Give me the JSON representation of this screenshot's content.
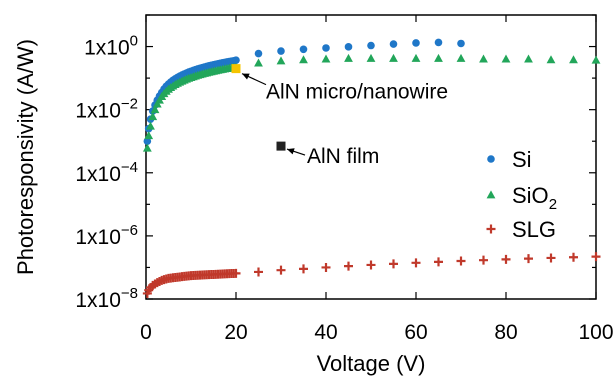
{
  "chart_data": {
    "type": "scatter",
    "xlabel": "Voltage (V)",
    "ylabel": "Photoresponsivity (A/W)",
    "xlim": [
      0,
      100
    ],
    "ylim": [
      1e-08,
      10
    ],
    "y_scale": "log",
    "x_ticks": [
      "0",
      "20",
      "40",
      "60",
      "80",
      "100"
    ],
    "y_ticks": [
      {
        "mantissa": "1x10",
        "exp": "0"
      },
      {
        "mantissa": "1x10",
        "exp": "−2"
      },
      {
        "mantissa": "1x10",
        "exp": "−4"
      },
      {
        "mantissa": "1x10",
        "exp": "−6"
      },
      {
        "mantissa": "1x10",
        "exp": "−8"
      }
    ],
    "legend_position": "right",
    "series": [
      {
        "name": "Si",
        "name_sub": "",
        "marker": "circle",
        "color": "#1f77c8",
        "x": [
          0.3,
          0.6,
          1,
          1.5,
          2,
          2.5,
          3,
          3.5,
          4,
          4.5,
          5,
          5.5,
          6,
          6.5,
          7,
          7.5,
          8,
          8.5,
          9,
          9.5,
          10,
          10.5,
          11,
          11.5,
          12,
          12.5,
          13,
          13.5,
          14,
          14.5,
          15,
          15.5,
          16,
          16.5,
          17,
          17.5,
          18,
          18.5,
          19,
          19.5,
          20,
          25,
          30,
          35,
          40,
          45,
          50,
          55,
          60,
          65,
          70
        ],
        "y": [
          0.001,
          0.0025,
          0.005,
          0.009,
          0.014,
          0.02,
          0.027,
          0.035,
          0.045,
          0.055,
          0.065,
          0.075,
          0.085,
          0.095,
          0.105,
          0.115,
          0.125,
          0.135,
          0.145,
          0.155,
          0.165,
          0.175,
          0.185,
          0.195,
          0.205,
          0.215,
          0.225,
          0.235,
          0.245,
          0.255,
          0.265,
          0.275,
          0.285,
          0.295,
          0.305,
          0.315,
          0.325,
          0.335,
          0.345,
          0.355,
          0.37,
          0.6,
          0.72,
          0.82,
          0.9,
          0.98,
          1.08,
          1.2,
          1.3,
          1.35,
          1.25
        ]
      },
      {
        "name": "SiO",
        "name_sub": "2",
        "marker": "triangle",
        "color": "#22a65a",
        "x": [
          0.3,
          0.6,
          1,
          1.5,
          2,
          2.5,
          3,
          3.5,
          4,
          4.5,
          5,
          5.5,
          6,
          6.5,
          7,
          7.5,
          8,
          8.5,
          9,
          9.5,
          10,
          10.5,
          11,
          11.5,
          12,
          12.5,
          13,
          13.5,
          14,
          14.5,
          15,
          15.5,
          16,
          16.5,
          17,
          17.5,
          18,
          18.5,
          19,
          19.5,
          20,
          25,
          30,
          35,
          40,
          45,
          50,
          55,
          60,
          65,
          70,
          75,
          80,
          85,
          90,
          95,
          100
        ],
        "y": [
          0.0006,
          0.0015,
          0.003,
          0.006,
          0.01,
          0.015,
          0.02,
          0.026,
          0.032,
          0.038,
          0.044,
          0.05,
          0.056,
          0.062,
          0.068,
          0.074,
          0.08,
          0.086,
          0.092,
          0.098,
          0.104,
          0.11,
          0.116,
          0.122,
          0.128,
          0.134,
          0.14,
          0.146,
          0.152,
          0.158,
          0.164,
          0.17,
          0.176,
          0.182,
          0.188,
          0.194,
          0.2,
          0.206,
          0.212,
          0.218,
          0.22,
          0.3,
          0.35,
          0.38,
          0.4,
          0.42,
          0.42,
          0.42,
          0.42,
          0.42,
          0.42,
          0.4,
          0.4,
          0.4,
          0.38,
          0.38,
          0.37
        ]
      },
      {
        "name": "SLG",
        "name_sub": "",
        "marker": "plus",
        "color": "#c0392b",
        "x": [
          0.3,
          0.6,
          1,
          1.5,
          2,
          2.5,
          3,
          3.5,
          4,
          4.5,
          5,
          5.5,
          6,
          6.5,
          7,
          7.5,
          8,
          8.5,
          9,
          9.5,
          10,
          10.5,
          11,
          11.5,
          12,
          12.5,
          13,
          13.5,
          14,
          14.5,
          15,
          15.5,
          16,
          16.5,
          17,
          17.5,
          18,
          18.5,
          19,
          19.5,
          20,
          25,
          30,
          35,
          40,
          45,
          50,
          55,
          60,
          65,
          70,
          75,
          80,
          85,
          90,
          95,
          100
        ],
        "y": [
          1.5e-08,
          1.9e-08,
          2.3e-08,
          2.7e-08,
          3e-08,
          3.3e-08,
          3.6e-08,
          3.9e-08,
          4.1e-08,
          4.3e-08,
          4.5e-08,
          4.6e-08,
          4.7e-08,
          4.8e-08,
          4.9e-08,
          5e-08,
          5.1e-08,
          5.2e-08,
          5.3e-08,
          5.4e-08,
          5.5e-08,
          5.55e-08,
          5.6e-08,
          5.65e-08,
          5.7e-08,
          5.75e-08,
          5.8e-08,
          5.85e-08,
          5.9e-08,
          5.95e-08,
          6e-08,
          6.05e-08,
          6.1e-08,
          6.15e-08,
          6.2e-08,
          6.25e-08,
          6.3e-08,
          6.35e-08,
          6.4e-08,
          6.45e-08,
          6.5e-08,
          7.2e-08,
          8.2e-08,
          9e-08,
          1e-07,
          1.1e-07,
          1.2e-07,
          1.3e-07,
          1.4e-07,
          1.5e-07,
          1.6e-07,
          1.7e-07,
          1.8e-07,
          1.9e-07,
          2e-07,
          2.1e-07,
          2.2e-07
        ]
      }
    ],
    "annotations": [
      {
        "text": "AlN micro/nanowire",
        "point_x": 20,
        "point_y": 0.2,
        "marker": "square",
        "color": "#f5c400"
      },
      {
        "text": "AlN film",
        "point_x": 30,
        "point_y": 0.0007,
        "marker": "square",
        "color": "#222222"
      }
    ]
  }
}
